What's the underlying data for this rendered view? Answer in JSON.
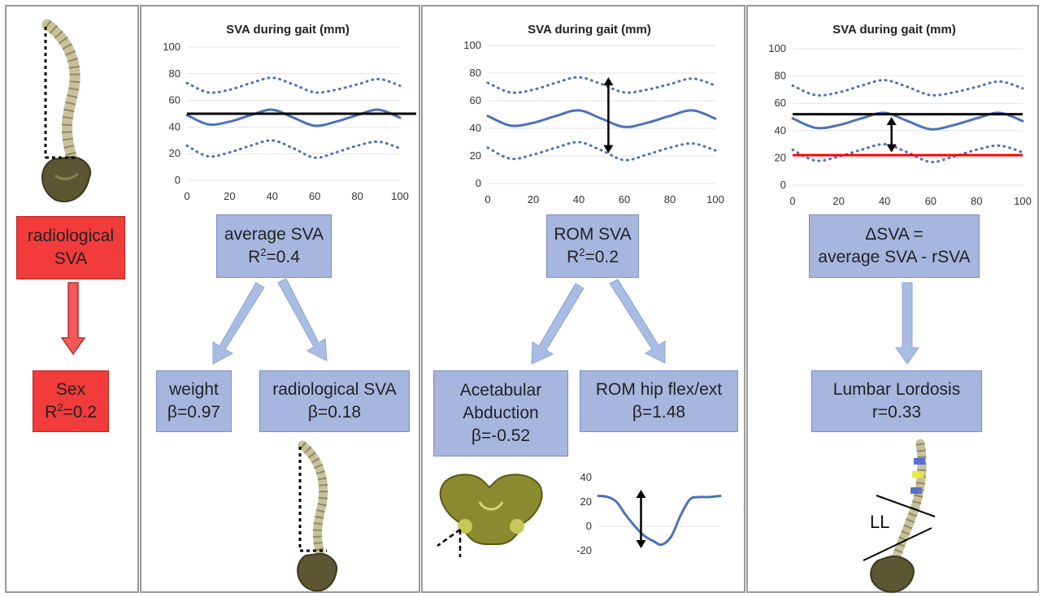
{
  "panel1": {
    "box_top": {
      "line1": "radiological",
      "line2": "SVA"
    },
    "box_bottom": {
      "line1": "Sex",
      "line2_prefix": "R",
      "line2_sup": "2",
      "line2_suffix": "=0.2"
    }
  },
  "panel2": {
    "chart_title": "SVA during gait (mm)",
    "box_main": {
      "line1": "average SVA",
      "line2_prefix": "R",
      "line2_sup": "2",
      "line2_suffix": "=0.4"
    },
    "box_left": {
      "line1": "weight",
      "line2": "β=0.97"
    },
    "box_right": {
      "line1": "radiological SVA",
      "line2": "β=0.18"
    }
  },
  "panel3": {
    "chart_title": "SVA during gait (mm)",
    "box_main": {
      "line1": "ROM SVA",
      "line2_prefix": "R",
      "line2_sup": "2",
      "line2_suffix": "=0.2"
    },
    "box_left": {
      "line1": "Acetabular",
      "line2": "Abduction",
      "line3": "β=-0.52"
    },
    "box_right": {
      "line1": "ROM hip flex/ext",
      "line2": "β=1.48"
    }
  },
  "panel4": {
    "chart_title": "SVA during gait (mm)",
    "box_main": {
      "line1": "ΔSVA =",
      "line2": "average SVA - rSVA"
    },
    "box_bottom": {
      "line1": "Lumbar Lordosis",
      "line2": "r=0.33"
    },
    "ll_label": "LL"
  },
  "colors": {
    "box_blue": "#a6b6df",
    "box_red": "#f23b3b",
    "curve_blue": "#4a72b8",
    "line_black": "#000000",
    "line_red": "#ff0000",
    "arrow_blue": "#a9bce3"
  },
  "chart_data": [
    {
      "type": "line",
      "title": "SVA during gait (mm)",
      "xlim": [
        0,
        100
      ],
      "ylim": [
        0,
        100
      ],
      "x_ticks": [
        0,
        20,
        40,
        60,
        80,
        100
      ],
      "y_ticks": [
        0,
        20,
        40,
        60,
        80,
        100
      ],
      "grid": true,
      "series": [
        {
          "style": "solid",
          "x": [
            0,
            10,
            20,
            30,
            40,
            50,
            60,
            70,
            80,
            90,
            100
          ],
          "y": [
            49,
            42,
            44,
            49,
            53,
            47,
            41,
            44,
            49,
            53,
            47
          ]
        },
        {
          "style": "dotted",
          "x": [
            0,
            10,
            20,
            30,
            40,
            50,
            60,
            70,
            80,
            90,
            100
          ],
          "y": [
            73,
            66,
            68,
            73,
            77,
            72,
            66,
            68,
            72,
            76,
            71
          ]
        },
        {
          "style": "dotted",
          "x": [
            0,
            10,
            20,
            30,
            40,
            50,
            60,
            70,
            80,
            90,
            100
          ],
          "y": [
            26,
            18,
            21,
            26,
            30,
            24,
            17,
            21,
            26,
            29,
            24
          ]
        }
      ],
      "reference_lines": [
        {
          "color": "black",
          "y": 50
        }
      ]
    },
    {
      "type": "line",
      "title": "SVA during gait (mm)",
      "xlim": [
        0,
        100
      ],
      "ylim": [
        0,
        100
      ],
      "x_ticks": [
        0,
        20,
        40,
        60,
        80,
        100
      ],
      "y_ticks": [
        0,
        20,
        40,
        60,
        80,
        100
      ],
      "grid": true,
      "series": [
        {
          "style": "solid",
          "x": [
            0,
            10,
            20,
            30,
            40,
            50,
            60,
            70,
            80,
            90,
            100
          ],
          "y": [
            49,
            42,
            44,
            49,
            53,
            47,
            41,
            44,
            49,
            53,
            47
          ]
        },
        {
          "style": "dotted",
          "x": [
            0,
            10,
            20,
            30,
            40,
            50,
            60,
            70,
            80,
            90,
            100
          ],
          "y": [
            73,
            66,
            68,
            73,
            77,
            72,
            66,
            68,
            72,
            76,
            71
          ]
        },
        {
          "style": "dotted",
          "x": [
            0,
            10,
            20,
            30,
            40,
            50,
            60,
            70,
            80,
            90,
            100
          ],
          "y": [
            26,
            18,
            21,
            26,
            30,
            24,
            17,
            21,
            26,
            29,
            24
          ]
        }
      ],
      "range_arrow": {
        "x": 53,
        "y_from": 22,
        "y_to": 77
      }
    },
    {
      "type": "line",
      "title": "SVA during gait (mm)",
      "xlim": [
        0,
        100
      ],
      "ylim": [
        0,
        100
      ],
      "x_ticks": [
        0,
        20,
        40,
        60,
        80,
        100
      ],
      "y_ticks": [
        0,
        20,
        40,
        60,
        80,
        100
      ],
      "grid": true,
      "series": [
        {
          "style": "solid",
          "x": [
            0,
            10,
            20,
            30,
            40,
            50,
            60,
            70,
            80,
            90,
            100
          ],
          "y": [
            49,
            42,
            44,
            49,
            53,
            47,
            41,
            44,
            49,
            53,
            47
          ]
        },
        {
          "style": "dotted",
          "x": [
            0,
            10,
            20,
            30,
            40,
            50,
            60,
            70,
            80,
            90,
            100
          ],
          "y": [
            73,
            66,
            68,
            73,
            77,
            72,
            66,
            68,
            72,
            76,
            71
          ]
        },
        {
          "style": "dotted",
          "x": [
            0,
            10,
            20,
            30,
            40,
            50,
            60,
            70,
            80,
            90,
            100
          ],
          "y": [
            26,
            18,
            21,
            26,
            30,
            24,
            17,
            21,
            26,
            29,
            24
          ]
        }
      ],
      "reference_lines": [
        {
          "color": "black",
          "y": 52
        },
        {
          "color": "red",
          "y": 22
        }
      ],
      "range_arrow": {
        "x": 43,
        "y_from": 24,
        "y_to": 50
      }
    },
    {
      "type": "line",
      "xlim": [
        0,
        100
      ],
      "ylim": [
        -20,
        40
      ],
      "y_ticks": [
        -20,
        0,
        20,
        40
      ],
      "grid": false,
      "series": [
        {
          "style": "solid",
          "x": [
            0,
            8,
            15,
            22,
            30,
            38,
            45,
            52,
            60,
            67,
            75,
            82,
            90,
            100
          ],
          "y": [
            25,
            24,
            20,
            10,
            0,
            -8,
            -12,
            -15,
            -8,
            8,
            22,
            24,
            24,
            25
          ]
        }
      ],
      "range_arrow": {
        "x": 35,
        "y_from": -18,
        "y_to": 30
      }
    }
  ]
}
